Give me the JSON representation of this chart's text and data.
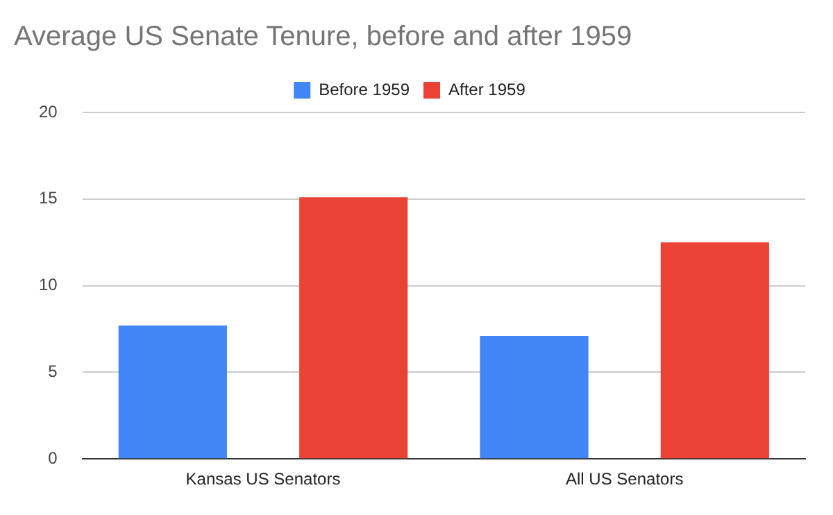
{
  "chart_data": {
    "type": "bar",
    "title": "Average US Senate Tenure, before and after 1959",
    "categories": [
      "Kansas US Senators",
      "All US Senators"
    ],
    "series": [
      {
        "name": "Before 1959",
        "color": "#4285f4",
        "values": [
          7.7,
          7.1
        ]
      },
      {
        "name": "After 1959",
        "color": "#ea4335",
        "values": [
          15.1,
          12.5
        ]
      }
    ],
    "ylim": [
      0,
      20
    ],
    "yticks": [
      0,
      5,
      10,
      15,
      20
    ],
    "grid": "y",
    "legend": "top"
  }
}
